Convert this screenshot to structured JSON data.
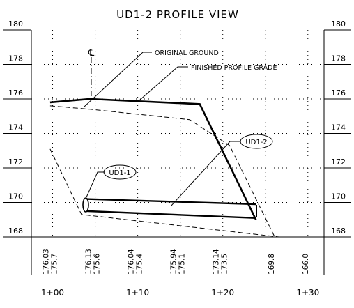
{
  "chart_data": {
    "type": "line",
    "title": "UD1-2 PROFILE VIEW",
    "xlim": [
      97.5,
      131.9
    ],
    "ylim": [
      168,
      180
    ],
    "yticks": [
      168,
      170,
      172,
      174,
      176,
      178,
      180
    ],
    "xticks": [
      {
        "value": 100,
        "label": "1+00"
      },
      {
        "value": 110,
        "label": "1+10"
      },
      {
        "value": 120,
        "label": "1+20"
      },
      {
        "value": 130,
        "label": "1+30"
      }
    ],
    "xgrid": [
      100,
      105,
      110,
      115,
      120,
      125,
      130
    ],
    "grid": true,
    "color": "#000000",
    "series": [
      {
        "name": "FINISHED PROFILE GRADE",
        "width": 2.6,
        "dash": false,
        "x": [
          99.7,
          104.4,
          117.3,
          123.9
        ],
        "values": [
          175.8,
          176,
          175.7,
          169
        ]
      },
      {
        "name": "ORIGINAL GROUND",
        "width": 1,
        "dash": true,
        "x": [
          99.7,
          104.4,
          116.1,
          120.8,
          126.1
        ],
        "values": [
          175.6,
          175.4,
          174.8,
          173.3,
          168
        ]
      },
      {
        "width": 1,
        "dash": true,
        "x": [
          99.7,
          103.4,
          126.6
        ],
        "values": [
          173.1,
          169.3,
          168
        ]
      },
      {
        "width": 2.4,
        "dash": false,
        "x": [
          104,
          123.9
        ],
        "values": [
          170.2,
          169.9
        ]
      },
      {
        "width": 2.4,
        "dash": false,
        "x": [
          104,
          123.9
        ],
        "values": [
          169.5,
          169.1
        ]
      }
    ],
    "station_labels": [
      {
        "x": 100,
        "texts": [
          "176.03",
          "175.7"
        ]
      },
      {
        "x": 105,
        "texts": [
          "176.13",
          "175.6"
        ]
      },
      {
        "x": 110,
        "texts": [
          "176.04",
          "175.4"
        ]
      },
      {
        "x": 115,
        "texts": [
          "175.94",
          "175.1"
        ]
      },
      {
        "x": 120,
        "texts": [
          "173.14",
          "173.5"
        ]
      },
      {
        "x": 126,
        "texts": [
          "169.8"
        ]
      },
      {
        "x": 130,
        "texts": [
          "166.0"
        ]
      }
    ],
    "annotations": {
      "centerline": "℄",
      "pipe_1": "UD1-1",
      "pipe_2": "UD1-2"
    }
  }
}
